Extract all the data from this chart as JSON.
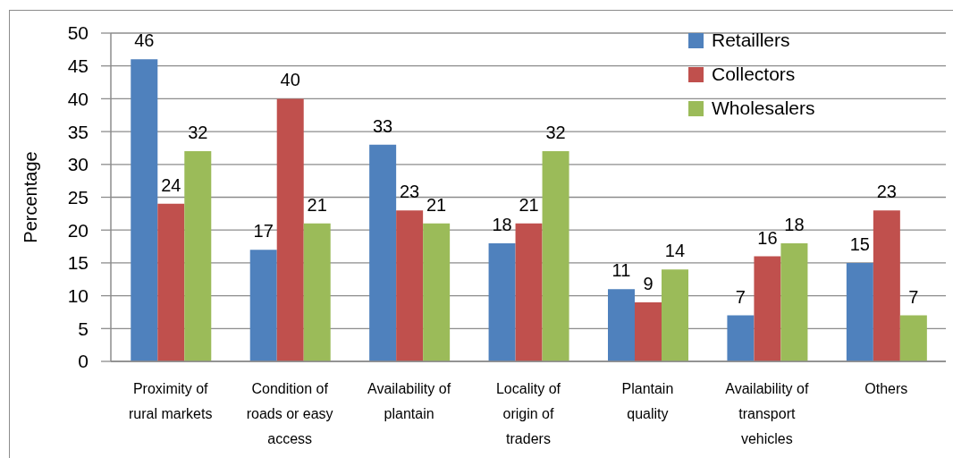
{
  "chart_data": {
    "type": "bar",
    "ylabel": "Percentage",
    "categories": [
      "Proximity of rural markets",
      "Condition of roads or easy access",
      "Availability of plantain",
      "Locality of origin of traders",
      "Plantain quality",
      "Availability of transport vehicles",
      "Others"
    ],
    "series": [
      {
        "name": "Retaillers",
        "color": "#4f81bd",
        "values": [
          46,
          17,
          33,
          18,
          11,
          7,
          15
        ]
      },
      {
        "name": "Collectors",
        "color": "#c0504d",
        "values": [
          24,
          40,
          23,
          21,
          9,
          16,
          23
        ]
      },
      {
        "name": "Wholesalers",
        "color": "#9bbb59",
        "values": [
          32,
          21,
          21,
          32,
          14,
          18,
          7
        ]
      }
    ],
    "ylim": [
      0,
      50
    ],
    "yticks": [
      0,
      5,
      10,
      15,
      20,
      25,
      30,
      35,
      40,
      45,
      50
    ],
    "grid": "y",
    "legend": "top right",
    "data_labels": true
  }
}
